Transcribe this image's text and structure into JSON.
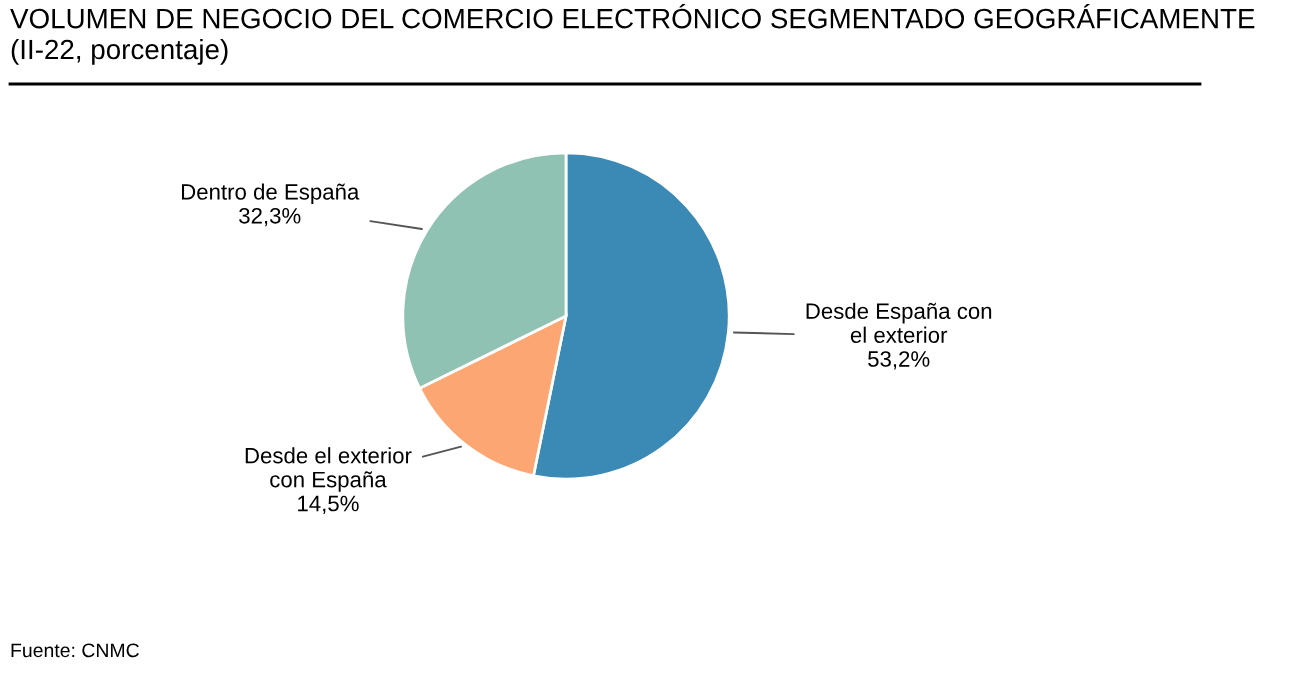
{
  "chart_data": {
    "type": "pie",
    "title": "VOLUMEN DE NEGOCIO DEL COMERCIO ELECTRÓNICO SEGMENTADO GEOGRÁFICAMENTE (II-22, porcentaje)",
    "categories": [
      "Desde España con\nel exterior",
      "Desde el exterior\ncon España",
      "Dentro de España"
    ],
    "values": [
      53.2,
      14.5,
      32.3
    ],
    "value_labels": [
      "53,2%",
      "14,5%",
      "32,3%"
    ],
    "colors": [
      "#3a8ab5",
      "#fca673",
      "#8fc2b3"
    ],
    "legend": false,
    "annotations": [
      "Fuente: CNMC"
    ]
  }
}
